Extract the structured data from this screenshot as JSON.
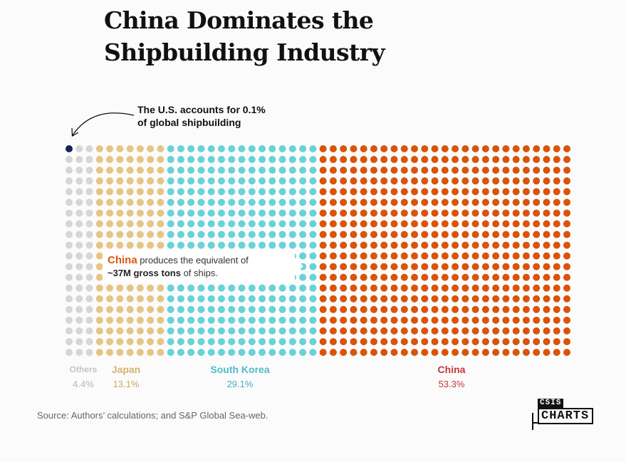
{
  "title": "China Dominates the Shipbuilding Industry",
  "annotation": {
    "us_note_line1": "The U.S. accounts for 0.1%",
    "us_note_line2": "of global shipbuilding",
    "callout_china": "China",
    "callout_text1": " produces the equivalent of",
    "callout_bold": "~37M gross tons",
    "callout_text2": " of ships."
  },
  "chart_data": {
    "type": "waffle",
    "title": "China Dominates the Shipbuilding Industry",
    "unit": "share of global shipbuilding",
    "grid_columns": 50,
    "grid_rows": 20,
    "categories": [
      "U.S.",
      "Others",
      "Japan",
      "South Korea",
      "China"
    ],
    "series": [
      {
        "name": "U.S.",
        "value": 0.1,
        "dots": 1,
        "color": "#13244f"
      },
      {
        "name": "Others",
        "value": 4.4,
        "dots": 59,
        "color": "#d6d6d6"
      },
      {
        "name": "Japan",
        "value": 13.1,
        "dots": 140,
        "color": "#e6c584"
      },
      {
        "name": "South Korea",
        "value": 29.1,
        "dots": 300,
        "color": "#67d3d8"
      },
      {
        "name": "China",
        "value": 53.3,
        "dots": 500,
        "color": "#d9540a"
      }
    ]
  },
  "legend": [
    {
      "name": "Others",
      "pct": "4.4%",
      "name_color": "#c3c3c3",
      "pct_color": "#b5b5b5"
    },
    {
      "name": "Japan",
      "pct": "13.1%",
      "name_color": "#d7b46e",
      "pct_color": "#c9a962"
    },
    {
      "name": "South Korea",
      "pct": "29.1%",
      "name_color": "#4fbcc9",
      "pct_color": "#3fb1c1"
    },
    {
      "name": "China",
      "pct": "53.3%",
      "name_color": "#c3373a",
      "pct_color": "#c3373a"
    }
  ],
  "source": "Source: Authors’ calculations; and S&P Global Sea-web.",
  "logo": {
    "top": "CSIS",
    "bottom": "CHARTS"
  }
}
